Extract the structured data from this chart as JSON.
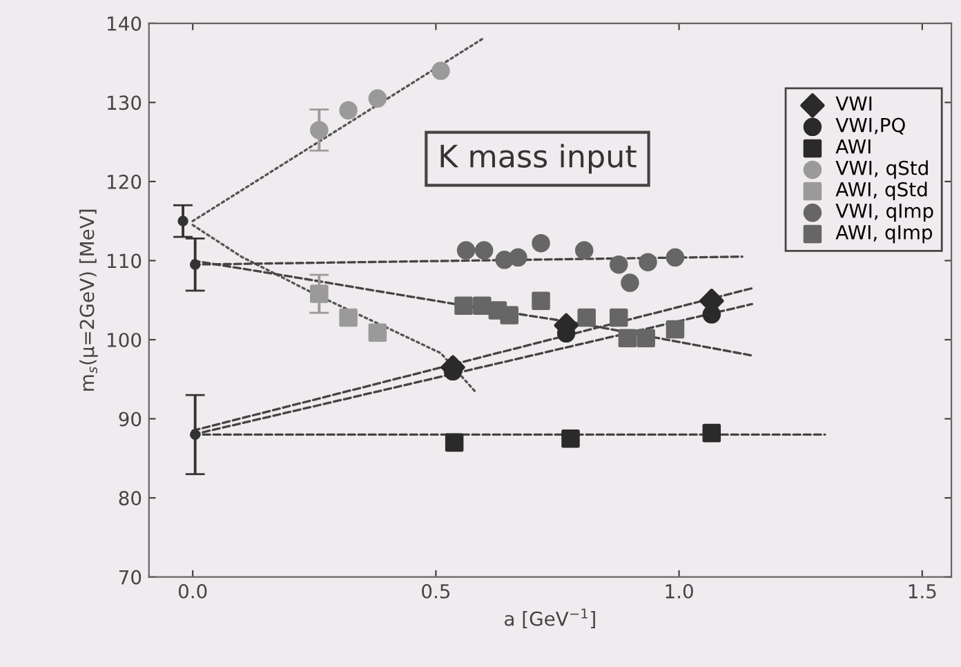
{
  "chart_data": {
    "type": "scatter",
    "xlabel": "a [GeV$^{−1}$]",
    "ylabel": "m$_{s}$(μ=2GeV) [MeV]",
    "xlim": [
      -0.09,
      1.56
    ],
    "ylim": [
      70,
      140
    ],
    "xticks": [
      {
        "value": 0,
        "label": "0.0"
      },
      {
        "value": 0.5,
        "label": "0.5"
      },
      {
        "value": 1,
        "label": "1.0"
      },
      {
        "value": 1.5,
        "label": "1.5"
      }
    ],
    "yticks": [
      70,
      80,
      90,
      100,
      110,
      120,
      130,
      140
    ],
    "grid": false,
    "legend": "top right",
    "annotations": [
      "K mass input"
    ],
    "series": [
      {
        "name": "VWI",
        "marker": "diamond",
        "color": "#2a2a2a",
        "x": [
          0.535,
          0.768,
          1.067
        ],
        "values": [
          96.5,
          101.8,
          104.9
        ]
      },
      {
        "name": "VWI,PQ",
        "marker": "circle",
        "color": "#2a2a2a",
        "x": [
          0.535,
          0.768,
          1.067
        ],
        "values": [
          96.0,
          100.8,
          103.2
        ]
      },
      {
        "name": "AWI",
        "marker": "square",
        "color": "#2a2a2a",
        "x": [
          0.538,
          0.777,
          1.067
        ],
        "values": [
          87.0,
          87.5,
          88.2
        ]
      },
      {
        "name": "VWI, qStd",
        "marker": "circle",
        "color": "#9a9a9a",
        "x": [
          0.26,
          0.32,
          0.38,
          0.51
        ],
        "values": [
          126.5,
          129,
          130.5,
          134
        ],
        "errors": [
          2.6,
          null,
          null,
          null
        ]
      },
      {
        "name": "AWI, qStd",
        "marker": "square",
        "color": "#9a9a9a",
        "x": [
          0.26,
          0.32,
          0.38
        ],
        "values": [
          105.8,
          102.8,
          100.9
        ],
        "errors": [
          2.4,
          null,
          null
        ]
      },
      {
        "name": "VWI, qImp",
        "marker": "circle",
        "color": "#666666",
        "x": [
          0.562,
          0.599,
          0.641,
          0.669,
          0.716,
          0.805,
          0.876,
          0.899,
          0.936,
          0.992
        ],
        "values": [
          111.3,
          111.3,
          110.1,
          110.4,
          112.2,
          111.3,
          109.5,
          107.2,
          109.8,
          110.4
        ]
      },
      {
        "name": "AWI, qImp",
        "marker": "square",
        "color": "#666666",
        "x": [
          0.557,
          0.595,
          0.627,
          0.651,
          0.716,
          0.81,
          0.876,
          0.894,
          0.932,
          0.992
        ],
        "values": [
          104.3,
          104.3,
          103.7,
          103.1,
          104.9,
          102.8,
          102.8,
          100.2,
          100.2,
          101.3
        ]
      },
      {
        "marker": "circle",
        "color": "#333333",
        "x": [
          -0.02,
          0.005,
          0.005
        ],
        "values": [
          115,
          109.5,
          88
        ],
        "errors": [
          2,
          3.3,
          5
        ]
      },
      {
        "type": "line",
        "line_style": "dotted",
        "color": "#555555",
        "x": [
          0,
          0.6
        ],
        "values": [
          115,
          138.2
        ]
      },
      {
        "type": "line",
        "line_style": "dotted",
        "color": "#555555",
        "x": [
          0,
          0.1,
          0.26,
          0.4,
          0.51,
          0.58
        ],
        "values": [
          114.5,
          110.5,
          105.5,
          101.5,
          98.3,
          93.5
        ]
      },
      {
        "type": "line",
        "line_style": "dashed",
        "color": "#444444",
        "x": [
          0,
          1.13
        ],
        "values": [
          109.5,
          110.5
        ]
      },
      {
        "type": "line",
        "line_style": "dashed",
        "color": "#444444",
        "x": [
          0,
          0.2,
          0.54,
          0.8,
          1.15
        ],
        "values": [
          110,
          108,
          104.5,
          102,
          98
        ]
      },
      {
        "type": "line",
        "line_style": "dashed",
        "color": "#444444",
        "x": [
          0,
          1.15
        ],
        "values": [
          88.5,
          106.5
        ]
      },
      {
        "type": "line",
        "line_style": "dashed",
        "color": "#444444",
        "x": [
          0,
          1.15
        ],
        "values": [
          88,
          104.5
        ]
      },
      {
        "type": "line",
        "line_style": "dashed",
        "color": "#444444",
        "x": [
          0,
          1.3
        ],
        "values": [
          88,
          88
        ]
      }
    ]
  }
}
